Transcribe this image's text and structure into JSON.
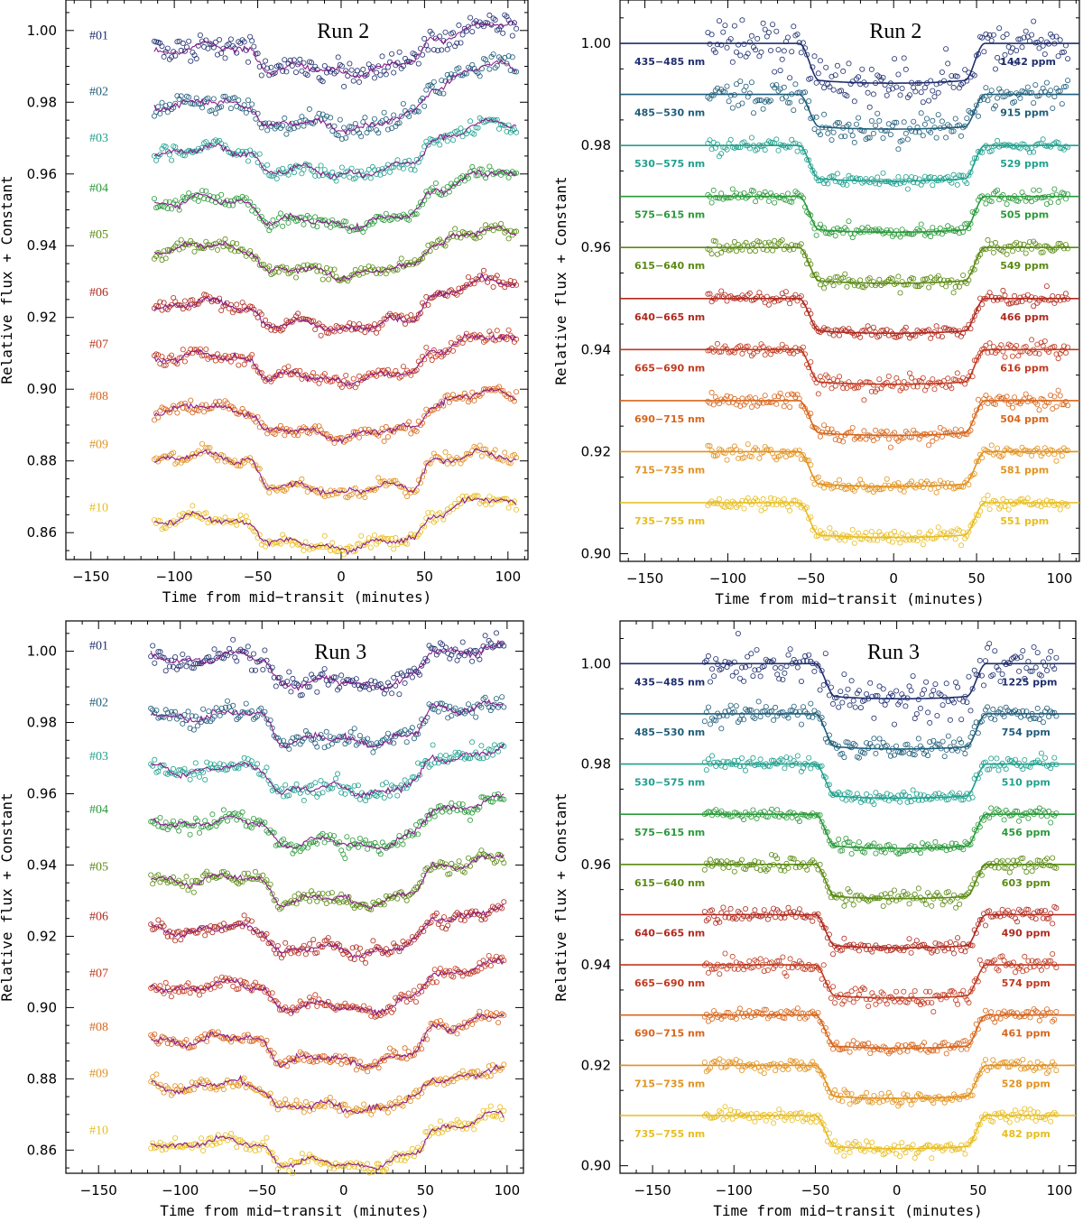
{
  "chart_data": [
    {
      "id": "p1",
      "type": "scatter",
      "title": "Run 2",
      "xlabel": "Time from mid−transit (minutes)",
      "ylabel": "Relative flux + Constant",
      "xlim": [
        -165,
        112
      ],
      "ylim": [
        0.8525,
        1.0085
      ],
      "xticks": [
        -150,
        -100,
        -50,
        0,
        50,
        100
      ],
      "xtick_labels": [
        "−150",
        "−100",
        "−50",
        "0",
        "50",
        "100"
      ],
      "yticks": [
        0.86,
        0.88,
        0.9,
        0.92,
        0.94,
        0.96,
        0.98,
        1.0
      ],
      "ytick_labels": [
        "0.86",
        "0.88",
        "0.90",
        "0.92",
        "0.94",
        "0.96",
        "0.98",
        "1.00"
      ],
      "x_range": [
        -112,
        105
      ],
      "ingress": -55,
      "egress": 55,
      "model": "raw",
      "series": [
        {
          "name": "#01",
          "color": "#1f2e6e",
          "baseline": 0.995,
          "depth": 0.006,
          "trend": 0.006,
          "noise": 0.0017
        },
        {
          "name": "#02",
          "color": "#1f5d7a",
          "baseline": 0.9795,
          "depth": 0.006,
          "trend": 0.01,
          "noise": 0.0014
        },
        {
          "name": "#03",
          "color": "#20a08e",
          "baseline": 0.9665,
          "depth": 0.006,
          "trend": 0.007,
          "noise": 0.0008
        },
        {
          "name": "#04",
          "color": "#2a9a3a",
          "baseline": 0.9525,
          "depth": 0.006,
          "trend": 0.007,
          "noise": 0.0007
        },
        {
          "name": "#05",
          "color": "#5a8a12",
          "baseline": 0.9395,
          "depth": 0.007,
          "trend": 0.004,
          "noise": 0.0007
        },
        {
          "name": "#06",
          "color": "#b02a1e",
          "baseline": 0.9235,
          "depth": 0.006,
          "trend": 0.006,
          "noise": 0.0007
        },
        {
          "name": "#07",
          "color": "#c1391f",
          "baseline": 0.909,
          "depth": 0.006,
          "trend": 0.005,
          "noise": 0.0007
        },
        {
          "name": "#08",
          "color": "#d8661c",
          "baseline": 0.8945,
          "depth": 0.007,
          "trend": 0.004,
          "noise": 0.0007
        },
        {
          "name": "#09",
          "color": "#e2921f",
          "baseline": 0.881,
          "depth": 0.009,
          "trend": 0.0,
          "noise": 0.0007
        },
        {
          "name": "#10",
          "color": "#e8bd1e",
          "baseline": 0.8635,
          "depth": 0.007,
          "trend": 0.005,
          "noise": 0.0007
        }
      ]
    },
    {
      "id": "p2",
      "type": "scatter",
      "title": "Run 2",
      "xlabel": "Time from mid−transit (minutes)",
      "ylabel": "Relative flux + Constant",
      "xlim": [
        -165,
        112
      ],
      "ylim": [
        0.8985,
        1.0085
      ],
      "xticks": [
        -150,
        -100,
        -50,
        0,
        50,
        100
      ],
      "xtick_labels": [
        "−150",
        "−100",
        "−50",
        "0",
        "50",
        "100"
      ],
      "yticks": [
        0.9,
        0.92,
        0.94,
        0.96,
        0.98,
        1.0
      ],
      "ytick_labels": [
        "0.90",
        "0.92",
        "0.94",
        "0.96",
        "0.98",
        "1.00"
      ],
      "x_range": [
        -112,
        105
      ],
      "ingress": -57,
      "egress": 55,
      "model": "fit",
      "series": [
        {
          "name": "435−485   nm",
          "ppm": "1442 ppm",
          "color": "#1f2e6e",
          "baseline": 1.0,
          "depth": 0.0078,
          "noise": 0.0022
        },
        {
          "name": "485−530   nm",
          "ppm": "915 ppm",
          "color": "#1f5d7a",
          "baseline": 0.99,
          "depth": 0.0068,
          "noise": 0.0013
        },
        {
          "name": "530−575   nm",
          "ppm": "529 ppm",
          "color": "#20a08e",
          "baseline": 0.98,
          "depth": 0.007,
          "noise": 0.0007
        },
        {
          "name": "575−615   nm",
          "ppm": "505 ppm",
          "color": "#2a9a3a",
          "baseline": 0.97,
          "depth": 0.007,
          "noise": 0.0007
        },
        {
          "name": "615−640   nm",
          "ppm": "549 ppm",
          "color": "#5a8a12",
          "baseline": 0.96,
          "depth": 0.007,
          "noise": 0.0007
        },
        {
          "name": "640−665   nm",
          "ppm": "466 ppm",
          "color": "#b02a1e",
          "baseline": 0.95,
          "depth": 0.0068,
          "noise": 0.0006
        },
        {
          "name": "665−690   nm",
          "ppm": "616 ppm",
          "color": "#c1391f",
          "baseline": 0.94,
          "depth": 0.0068,
          "noise": 0.0008
        },
        {
          "name": "690−715   nm",
          "ppm": "504 ppm",
          "color": "#d8661c",
          "baseline": 0.93,
          "depth": 0.0068,
          "noise": 0.0007
        },
        {
          "name": "715−735   nm",
          "ppm": "581 ppm",
          "color": "#e2921f",
          "baseline": 0.92,
          "depth": 0.0068,
          "noise": 0.0007
        },
        {
          "name": "735−755   nm",
          "ppm": "551 ppm",
          "color": "#e8bd1e",
          "baseline": 0.91,
          "depth": 0.0068,
          "noise": 0.0007
        }
      ]
    },
    {
      "id": "p3",
      "type": "scatter",
      "title": "Run 3",
      "xlabel": "Time from mid−transit (minutes)",
      "ylabel": "Relative flux + Constant",
      "xlim": [
        -170,
        110
      ],
      "ylim": [
        0.8535,
        1.0085
      ],
      "xticks": [
        -150,
        -100,
        -50,
        0,
        50,
        100
      ],
      "xtick_labels": [
        "−150",
        "−100",
        "−50",
        "0",
        "50",
        "100"
      ],
      "yticks": [
        0.86,
        0.88,
        0.9,
        0.92,
        0.94,
        0.96,
        0.98,
        1.0
      ],
      "ytick_labels": [
        "0.86",
        "0.88",
        "0.90",
        "0.92",
        "0.94",
        "0.96",
        "0.98",
        "1.00"
      ],
      "x_range": [
        -118,
        98
      ],
      "ingress": -50,
      "egress": 55,
      "model": "raw",
      "series": [
        {
          "name": "#01",
          "color": "#1f2e6e",
          "baseline": 0.998,
          "depth": 0.007,
          "trend": 0.003,
          "noise": 0.0014
        },
        {
          "name": "#02",
          "color": "#1f5d7a",
          "baseline": 0.982,
          "depth": 0.007,
          "trend": 0.003,
          "noise": 0.0012
        },
        {
          "name": "#03",
          "color": "#20a08e",
          "baseline": 0.967,
          "depth": 0.006,
          "trend": 0.005,
          "noise": 0.001
        },
        {
          "name": "#04",
          "color": "#2a9a3a",
          "baseline": 0.952,
          "depth": 0.006,
          "trend": 0.006,
          "noise": 0.001
        },
        {
          "name": "#05",
          "color": "#5a8a12",
          "baseline": 0.936,
          "depth": 0.006,
          "trend": 0.006,
          "noise": 0.0008
        },
        {
          "name": "#06",
          "color": "#b02a1e",
          "baseline": 0.922,
          "depth": 0.006,
          "trend": 0.005,
          "noise": 0.0008
        },
        {
          "name": "#07",
          "color": "#c1391f",
          "baseline": 0.906,
          "depth": 0.006,
          "trend": 0.006,
          "noise": 0.0007
        },
        {
          "name": "#08",
          "color": "#d8661c",
          "baseline": 0.891,
          "depth": 0.006,
          "trend": 0.006,
          "noise": 0.0007
        },
        {
          "name": "#09",
          "color": "#e2921f",
          "baseline": 0.878,
          "depth": 0.006,
          "trend": 0.004,
          "noise": 0.0007
        },
        {
          "name": "#10",
          "color": "#e8bd1e",
          "baseline": 0.862,
          "depth": 0.006,
          "trend": 0.007,
          "noise": 0.0007
        }
      ]
    },
    {
      "id": "p4",
      "type": "scatter",
      "title": "Run 3",
      "xlabel": "Time from mid−transit (minutes)",
      "ylabel": "Relative flux + Constant",
      "xlim": [
        -170,
        110
      ],
      "ylim": [
        0.8985,
        1.0085
      ],
      "xticks": [
        -150,
        -100,
        -50,
        0,
        50,
        100
      ],
      "xtick_labels": [
        "−150",
        "−100",
        "−50",
        "0",
        "50",
        "100"
      ],
      "yticks": [
        0.9,
        0.92,
        0.94,
        0.96,
        0.98,
        1.0
      ],
      "ytick_labels": [
        "0.90",
        "0.92",
        "0.94",
        "0.96",
        "0.98",
        "1.00"
      ],
      "x_range": [
        -118,
        98
      ],
      "ingress": -50,
      "egress": 55,
      "model": "fit",
      "series": [
        {
          "name": "435−485   nm",
          "ppm": "1225 ppm",
          "color": "#1f2e6e",
          "baseline": 1.0,
          "depth": 0.007,
          "noise": 0.002
        },
        {
          "name": "485−530   nm",
          "ppm": "754 ppm",
          "color": "#1f5d7a",
          "baseline": 0.99,
          "depth": 0.007,
          "noise": 0.001
        },
        {
          "name": "530−575   nm",
          "ppm": "510 ppm",
          "color": "#20a08e",
          "baseline": 0.98,
          "depth": 0.0068,
          "noise": 0.0007
        },
        {
          "name": "575−615   nm",
          "ppm": "456 ppm",
          "color": "#2a9a3a",
          "baseline": 0.97,
          "depth": 0.0068,
          "noise": 0.0006
        },
        {
          "name": "615−640   nm",
          "ppm": "603 ppm",
          "color": "#5a8a12",
          "baseline": 0.96,
          "depth": 0.0068,
          "noise": 0.0008
        },
        {
          "name": "640−665   nm",
          "ppm": "490 ppm",
          "color": "#b02a1e",
          "baseline": 0.95,
          "depth": 0.0066,
          "noise": 0.0007
        },
        {
          "name": "665−690   nm",
          "ppm": "574 ppm",
          "color": "#c1391f",
          "baseline": 0.94,
          "depth": 0.0066,
          "noise": 0.0008
        },
        {
          "name": "690−715   nm",
          "ppm": "461 ppm",
          "color": "#d8661c",
          "baseline": 0.93,
          "depth": 0.0066,
          "noise": 0.0006
        },
        {
          "name": "715−735   nm",
          "ppm": "528 ppm",
          "color": "#e2921f",
          "baseline": 0.92,
          "depth": 0.0066,
          "noise": 0.0007
        },
        {
          "name": "735−755   nm",
          "ppm": "482 ppm",
          "color": "#e8bd1e",
          "baseline": 0.91,
          "depth": 0.0066,
          "noise": 0.0007
        }
      ]
    }
  ]
}
